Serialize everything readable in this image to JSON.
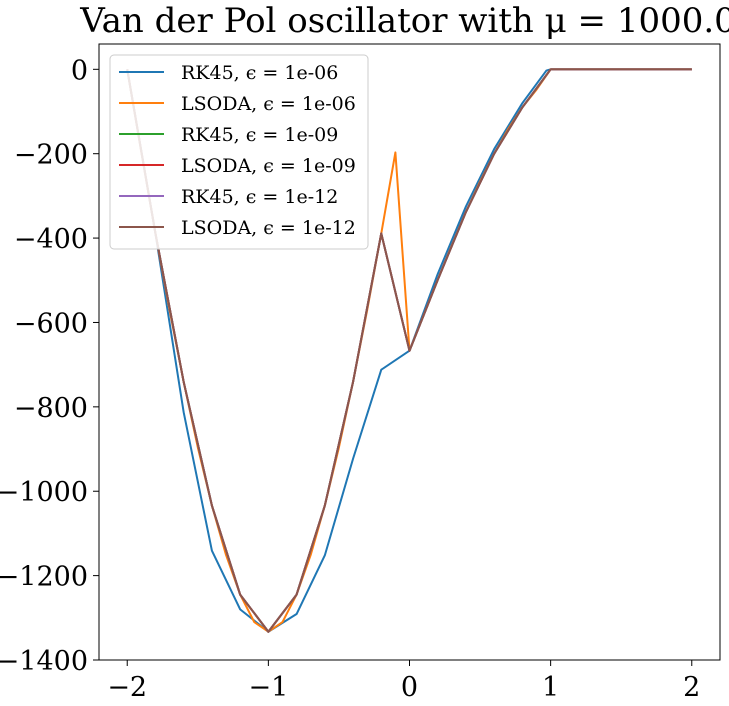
{
  "chart_data": {
    "type": "line",
    "title": "Van der Pol oscillator with μ = 1000.0",
    "xlabel": "",
    "ylabel": "",
    "xlim": [
      -2.2,
      2.2
    ],
    "ylim": [
      -1400,
      60
    ],
    "xticks": [
      -2,
      -1,
      0,
      1,
      2
    ],
    "xtick_labels": [
      "−2",
      "−1",
      "0",
      "1",
      "2"
    ],
    "yticks": [
      0,
      -200,
      -400,
      -600,
      -800,
      -1000,
      -1200,
      -1400
    ],
    "ytick_labels": [
      "0",
      "−200",
      "−400",
      "−600",
      "−800",
      "−1000",
      "−1200",
      "−1400"
    ],
    "grid": false,
    "legend_position": "upper-left",
    "series": [
      {
        "name": "RK45, ϵ = 1e-06",
        "color": "#1f77b4",
        "x": [
          -2.0,
          -1.8,
          -1.6,
          -1.4,
          -1.2,
          -1.0,
          -0.8,
          -0.6,
          -0.4,
          -0.2,
          0.0,
          0.2,
          0.4,
          0.6,
          0.8,
          0.97,
          1.0,
          1.5,
          2.0
        ],
        "y": [
          0,
          -389,
          -813,
          -1141,
          -1280,
          -1333,
          -1291,
          -1152,
          -923,
          -712,
          -667,
          -485,
          -325,
          -189,
          -80,
          -3,
          0,
          0,
          0
        ]
      },
      {
        "name": "LSODA, ϵ = 1e-06",
        "color": "#ff7f0e",
        "x": [
          -2.0,
          -1.9,
          -1.8,
          -1.7,
          -1.6,
          -1.5,
          -1.4,
          -1.3,
          -1.2,
          -1.1,
          -1.0,
          -0.9,
          -0.8,
          -0.7,
          -0.6,
          -0.5,
          -0.4,
          -0.3,
          -0.2,
          -0.1,
          0.0,
          0.1,
          0.2,
          0.3,
          0.4,
          0.5,
          0.6,
          0.7,
          0.8,
          0.9,
          1.0,
          1.5,
          2.0
        ],
        "y": [
          0,
          -197,
          -389,
          -571,
          -741,
          -896,
          -1034,
          -1151,
          -1245,
          -1310,
          -1333,
          -1310,
          -1245,
          -1151,
          -1034,
          -896,
          -741,
          -571,
          -389,
          -197,
          -667,
          -583,
          -499,
          -417,
          -338,
          -266,
          -200,
          -141,
          -90,
          -48,
          0,
          0,
          0
        ]
      },
      {
        "name": "RK45, ϵ = 1e-09",
        "color": "#2ca02c",
        "x": [
          -2.0,
          -1.8,
          -1.6,
          -1.4,
          -1.2,
          -1.0,
          -0.8,
          -0.6,
          -0.4,
          -0.2,
          0.0,
          0.2,
          0.4,
          0.6,
          0.8,
          1.0,
          1.5,
          2.0
        ],
        "y": [
          0,
          -389,
          -741,
          -1034,
          -1245,
          -1333,
          -1245,
          -1034,
          -741,
          -389,
          -667,
          -499,
          -338,
          -200,
          -90,
          0,
          0,
          0
        ]
      },
      {
        "name": "LSODA, ϵ = 1e-09",
        "color": "#d62728",
        "x": [
          -2.0,
          -1.8,
          -1.6,
          -1.4,
          -1.2,
          -1.0,
          -0.8,
          -0.6,
          -0.4,
          -0.2,
          0.0,
          0.2,
          0.4,
          0.6,
          0.8,
          1.0,
          1.5,
          2.0
        ],
        "y": [
          0,
          -389,
          -741,
          -1034,
          -1245,
          -1333,
          -1245,
          -1034,
          -741,
          -389,
          -667,
          -499,
          -338,
          -200,
          -90,
          0,
          0,
          0
        ]
      },
      {
        "name": "RK45, ϵ = 1e-12",
        "color": "#9467bd",
        "x": [
          -2.0,
          -1.8,
          -1.6,
          -1.4,
          -1.2,
          -1.0,
          -0.8,
          -0.6,
          -0.4,
          -0.2,
          0.0,
          0.2,
          0.4,
          0.6,
          0.8,
          1.0,
          1.5,
          2.0
        ],
        "y": [
          0,
          -389,
          -741,
          -1034,
          -1245,
          -1333,
          -1245,
          -1034,
          -741,
          -389,
          -667,
          -499,
          -338,
          -200,
          -90,
          0,
          0,
          0
        ]
      },
      {
        "name": "LSODA, ϵ = 1e-12",
        "color": "#8c564b",
        "x": [
          -2.0,
          -1.8,
          -1.6,
          -1.4,
          -1.2,
          -1.0,
          -0.8,
          -0.6,
          -0.4,
          -0.2,
          0.0,
          0.2,
          0.4,
          0.6,
          0.8,
          1.0,
          1.5,
          2.0
        ],
        "y": [
          0,
          -389,
          -741,
          -1034,
          -1245,
          -1333,
          -1245,
          -1034,
          -741,
          -389,
          -667,
          -499,
          -338,
          -200,
          -90,
          0,
          0,
          0
        ]
      }
    ]
  }
}
